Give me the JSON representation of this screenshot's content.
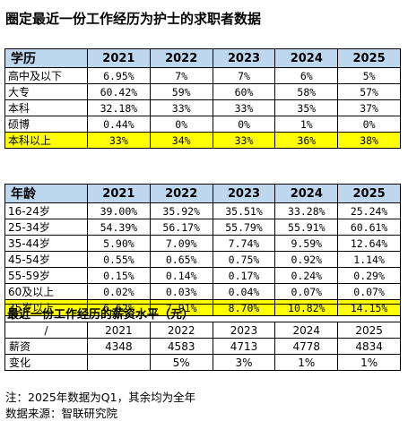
{
  "title": "圈定最近一份工作经历为护士的求职者数据",
  "education": {
    "header": [
      "学历",
      "2021",
      "2022",
      "2023",
      "2024",
      "2025"
    ],
    "rows": [
      [
        "高中及以下",
        "6.95%",
        "7%",
        "7%",
        "6%",
        "5%"
      ],
      [
        "大专",
        "60.42%",
        "59%",
        "60%",
        "58%",
        "57%"
      ],
      [
        "本科",
        "32.18%",
        "33%",
        "33%",
        "35%",
        "37%"
      ],
      [
        "硕博",
        "0.44%",
        "0%",
        "0%",
        "1%",
        "0%"
      ]
    ],
    "highlight": [
      "本科以上",
      "33%",
      "34%",
      "33%",
      "36%",
      "38%"
    ]
  },
  "age": {
    "header": [
      "年龄",
      "2021",
      "2022",
      "2023",
      "2024",
      "2025"
    ],
    "rows": [
      [
        "16-24岁",
        "39.00%",
        "35.92%",
        "35.51%",
        "33.28%",
        "25.24%"
      ],
      [
        "25-34岁",
        "54.39%",
        "56.17%",
        "55.79%",
        "55.91%",
        "60.61%"
      ],
      [
        "35-44岁",
        "5.90%",
        "7.09%",
        "7.74%",
        "9.59%",
        "12.64%"
      ],
      [
        "45-54岁",
        "0.55%",
        "0.65%",
        "0.75%",
        "0.92%",
        "1.14%"
      ],
      [
        "55-59岁",
        "0.15%",
        "0.14%",
        "0.17%",
        "0.24%",
        "0.29%"
      ],
      [
        "60及以上",
        "0.02%",
        "0.03%",
        "0.04%",
        "0.07%",
        "0.07%"
      ]
    ],
    "highlight": [
      "35岁以上",
      "6.62%",
      "7.91%",
      "8.70%",
      "10.82%",
      "14.15%"
    ]
  },
  "salary": {
    "title": "最近一份工作经历的薪资水平（元）",
    "header": [
      "/",
      "2021",
      "2022",
      "2023",
      "2024",
      "2025"
    ],
    "rows": [
      [
        "薪资",
        "4348",
        "4583",
        "4713",
        "4778",
        "4834"
      ],
      [
        "变化",
        "",
        "5%",
        "3%",
        "1%",
        "1%"
      ]
    ]
  },
  "notes": {
    "note1": "注：2025年数据为Q1，其余均为全年",
    "note2": "数据来源：智联研究院"
  }
}
